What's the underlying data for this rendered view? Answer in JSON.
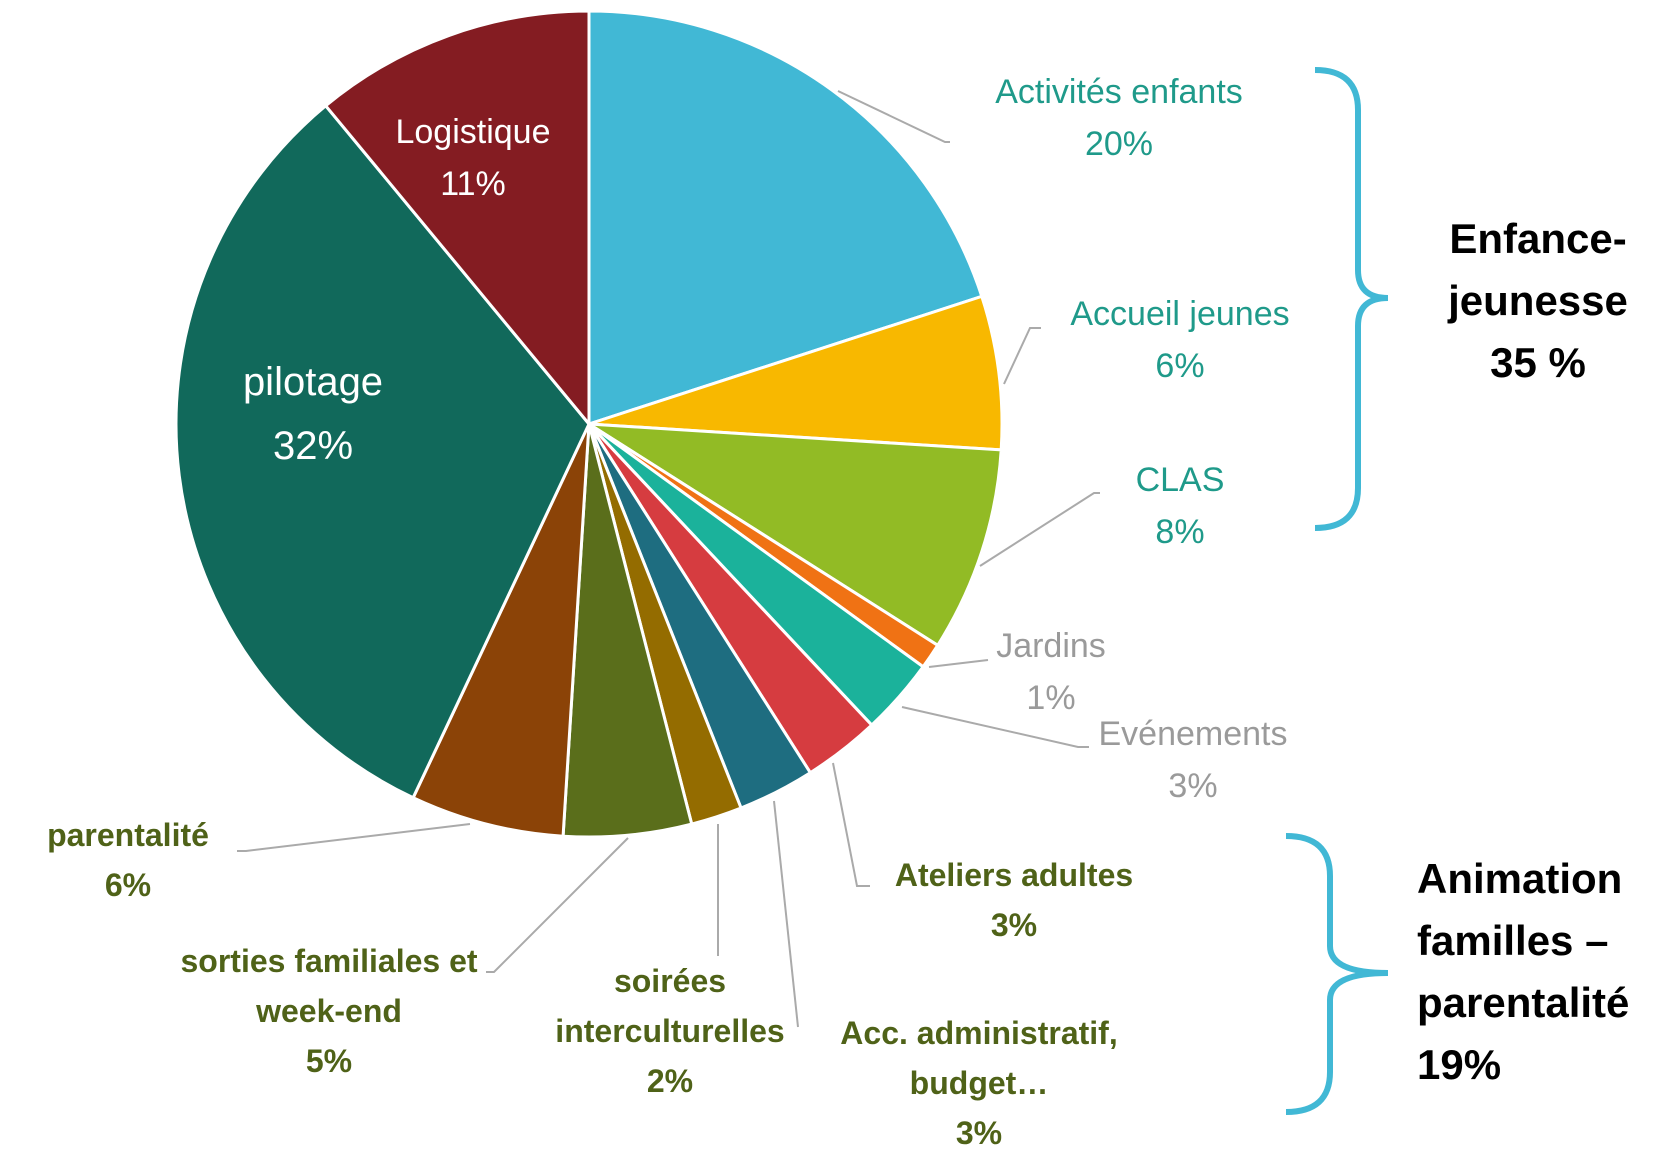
{
  "chart_data": {
    "type": "pie",
    "categories": [
      "Activités enfants",
      "Accueil jeunes",
      "CLAS",
      "Jardins",
      "Evénements",
      "Ateliers adultes",
      "Acc. administratif, budget…",
      "soirées interculturelles",
      "sorties familiales et week-end",
      "parentalité",
      "pilotage",
      "Logistique"
    ],
    "values": [
      20,
      6,
      8,
      1,
      3,
      3,
      3,
      2,
      5,
      6,
      32,
      11
    ],
    "value_labels": [
      "20%",
      "6%",
      "8%",
      "1%",
      "3%",
      "3%",
      "3%",
      "2%",
      "5%",
      "6%",
      "32%",
      "11%"
    ],
    "colors": [
      "#41b8d5",
      "#f8b800",
      "#92bb25",
      "#f07214",
      "#1bb29b",
      "#d63c40",
      "#1e6d80",
      "#946c00",
      "#5a6e1b",
      "#8b4307",
      "#11695b",
      "#841c22"
    ],
    "annotations": [
      {
        "text": "Enfance-jeunesse",
        "value_label": "35 %"
      },
      {
        "text": "Animation familles – parentalité",
        "value_label": "19%"
      }
    ]
  }
}
